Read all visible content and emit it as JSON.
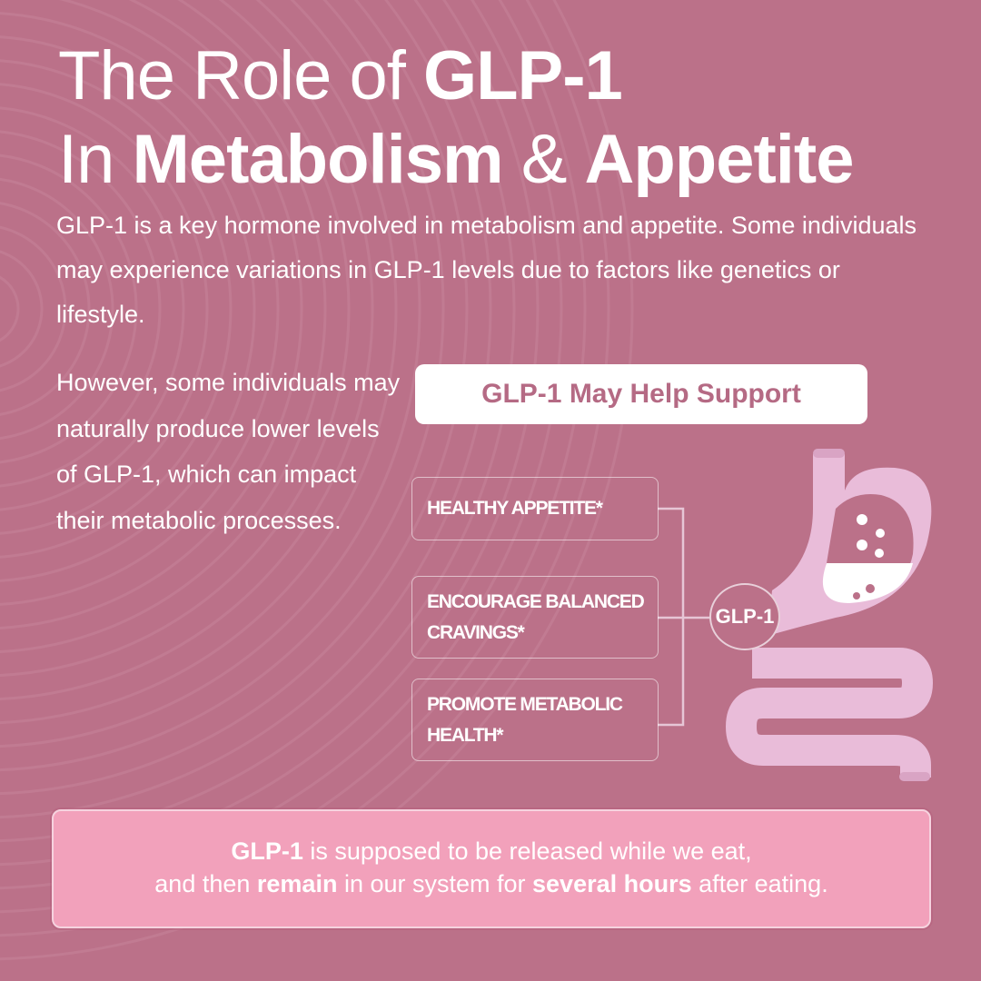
{
  "title": {
    "line1_light": "The Role of ",
    "line1_bold": "GLP-1",
    "line2_light_a": "In ",
    "line2_bold_a": "Metabolism",
    "line2_light_b": " & ",
    "line2_bold_b": "Appetite"
  },
  "intro": "GLP-1 is a key hormone involved in metabolism and appetite. Some individuals may experience variations in GLP-1 levels due to factors like genetics or lifestyle.",
  "left_text": "However, some individuals may naturally produce lower levels of GLP-1, which can impact their metabolic processes.",
  "support_heading": "GLP-1 May Help Support",
  "benefits": [
    {
      "label": "HEALTHY APPETITE*"
    },
    {
      "label": "ENCOURAGE BALANCED CRAVINGS*"
    },
    {
      "label": "PROMOTE METABOLIC HEALTH*"
    }
  ],
  "diagram": {
    "hub_label": "GLP-1",
    "icon": "stomach-intestine-icon"
  },
  "bottom": {
    "b1": "GLP-1",
    "t1": " is supposed to be released while we eat,",
    "t2": "and then ",
    "b2": "remain",
    "t3": " in our system for ",
    "b3": "several hours",
    "t4": " after eating."
  },
  "colors": {
    "background": "#bb7189",
    "accent_text": "#b56a84",
    "organ": "#e9bcd9",
    "bottom_box": "#f2a1bb"
  }
}
